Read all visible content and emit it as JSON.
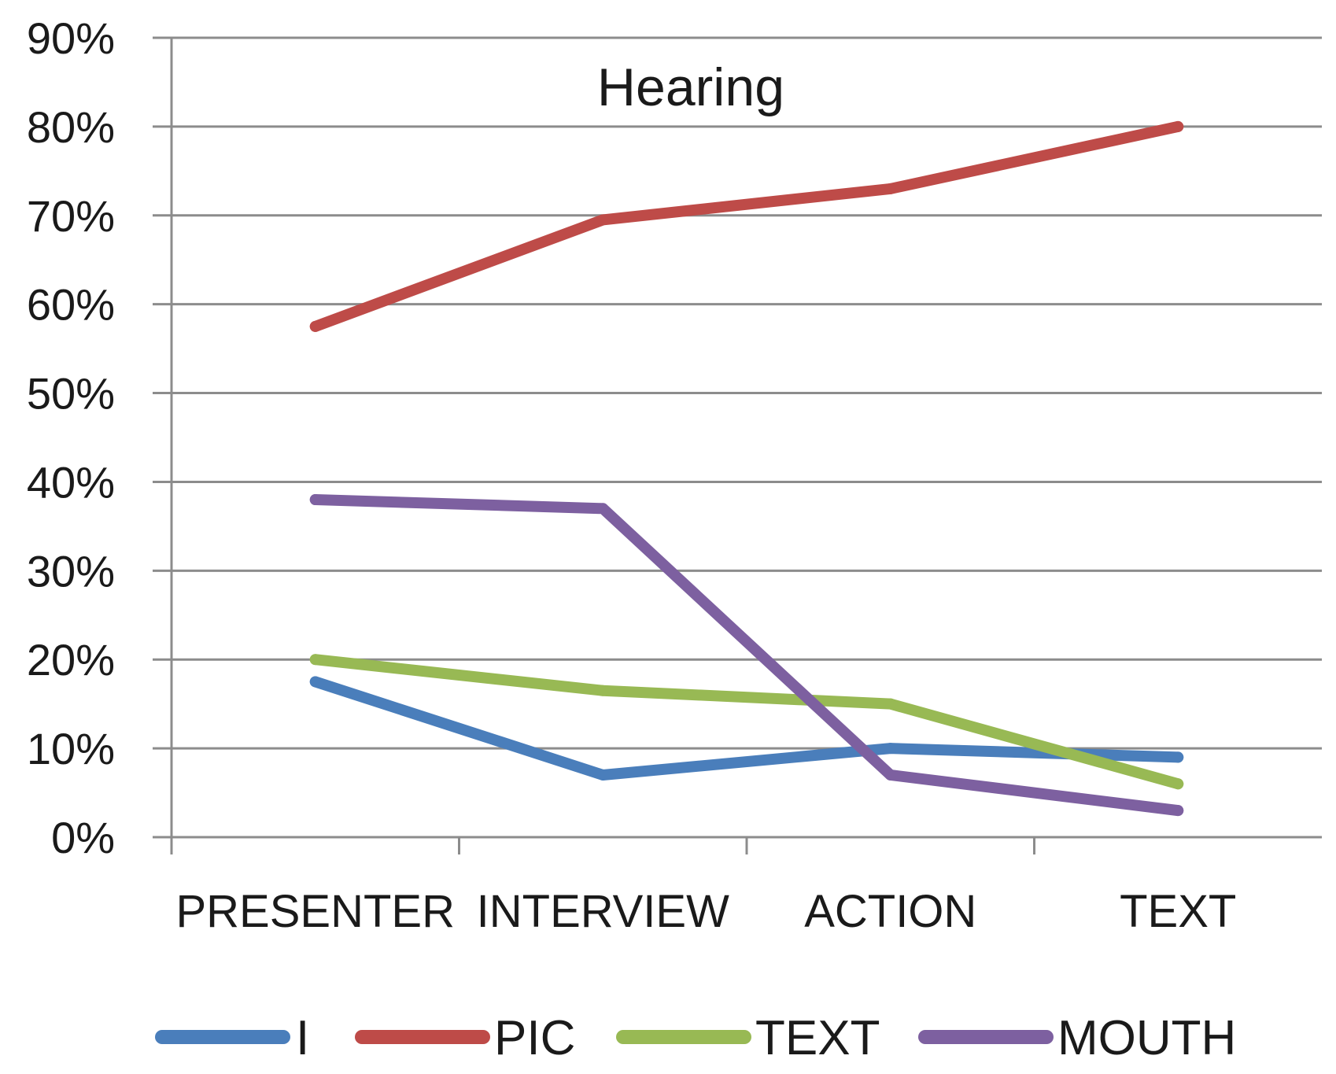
{
  "chart_data": {
    "type": "line",
    "title": "Hearing",
    "xlabel": "",
    "ylabel": "",
    "categories": [
      "PRESENTER",
      "INTERVIEW",
      "ACTION",
      "TEXT"
    ],
    "ylim": [
      0,
      90
    ],
    "yticks": [
      0,
      10,
      20,
      30,
      40,
      50,
      60,
      70,
      80,
      90
    ],
    "ytick_labels": [
      "0%",
      "10%",
      "20%",
      "30%",
      "40%",
      "50%",
      "60%",
      "70%",
      "80%",
      "90%"
    ],
    "grid": true,
    "legend_position": "bottom",
    "series": [
      {
        "name": "I",
        "color": "#4a7ebb",
        "values": [
          17.5,
          7,
          10,
          9
        ]
      },
      {
        "name": "PIC",
        "color": "#be4b48",
        "values": [
          57.5,
          69.5,
          73,
          80
        ]
      },
      {
        "name": "TEXT",
        "color": "#98b954",
        "values": [
          20,
          16.5,
          15,
          6
        ]
      },
      {
        "name": "MOUTH",
        "color": "#7d60a0",
        "values": [
          38,
          37,
          7,
          3
        ]
      }
    ]
  }
}
